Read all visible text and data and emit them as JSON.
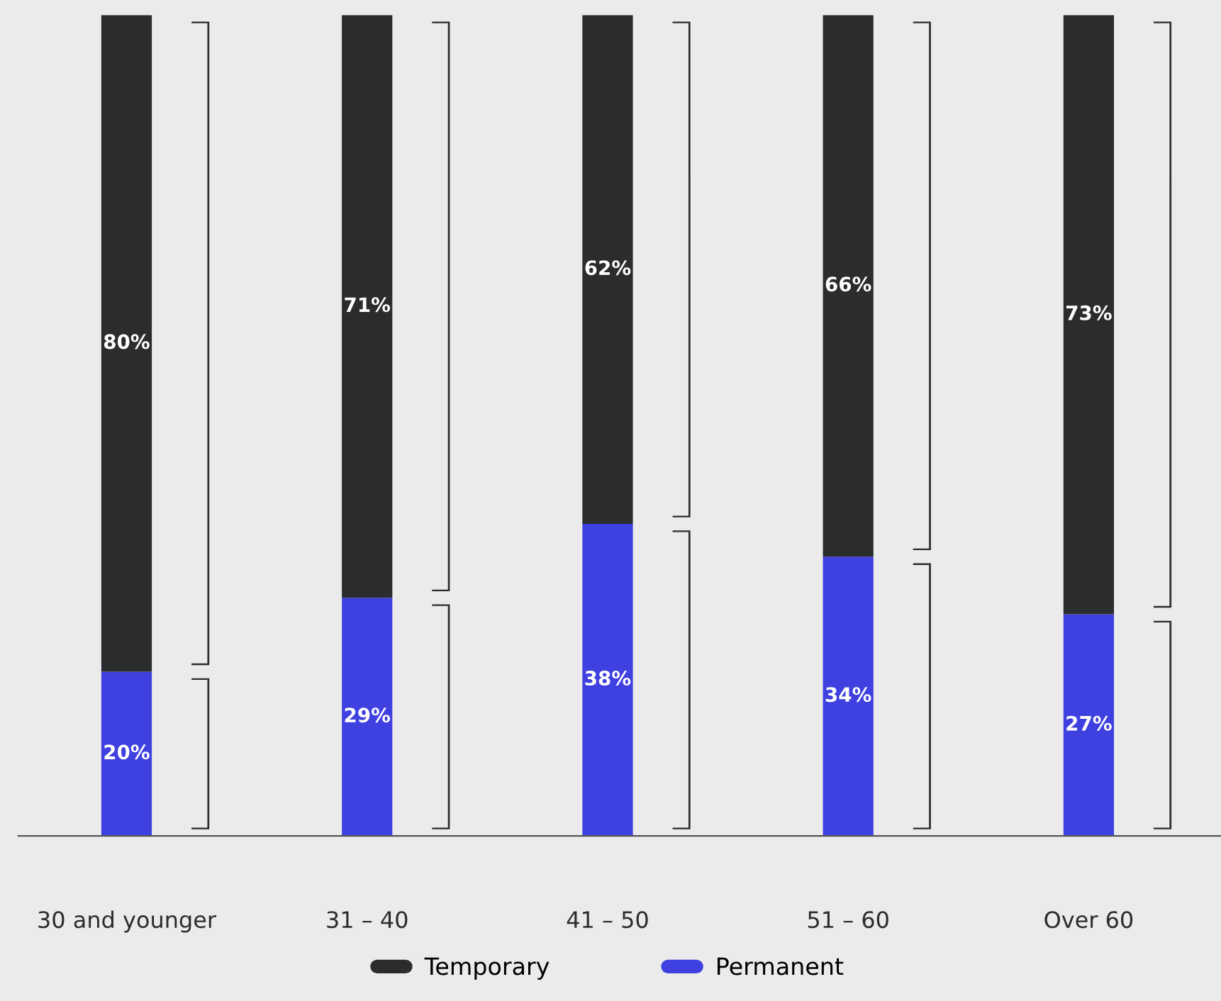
{
  "chart_data": {
    "type": "bar",
    "stacked": true,
    "categories": [
      "30 and younger",
      "31 – 40",
      "41 – 50",
      "51 – 60",
      "Over 60"
    ],
    "series": [
      {
        "name": "Permanent",
        "color": "#3f40e0",
        "values": [
          20,
          29,
          38,
          34,
          27
        ],
        "value_labels": [
          "20%",
          "29%",
          "38%",
          "34%",
          "27%"
        ]
      },
      {
        "name": "Temporary",
        "color": "#2b2c2e",
        "values": [
          80,
          71,
          62,
          66,
          73
        ],
        "value_labels": [
          "80%",
          "71%",
          "62%",
          "66%",
          "73%"
        ]
      }
    ],
    "ylim": [
      0,
      100
    ],
    "tick_labels": "x",
    "grid": false,
    "legend": "bottom"
  }
}
